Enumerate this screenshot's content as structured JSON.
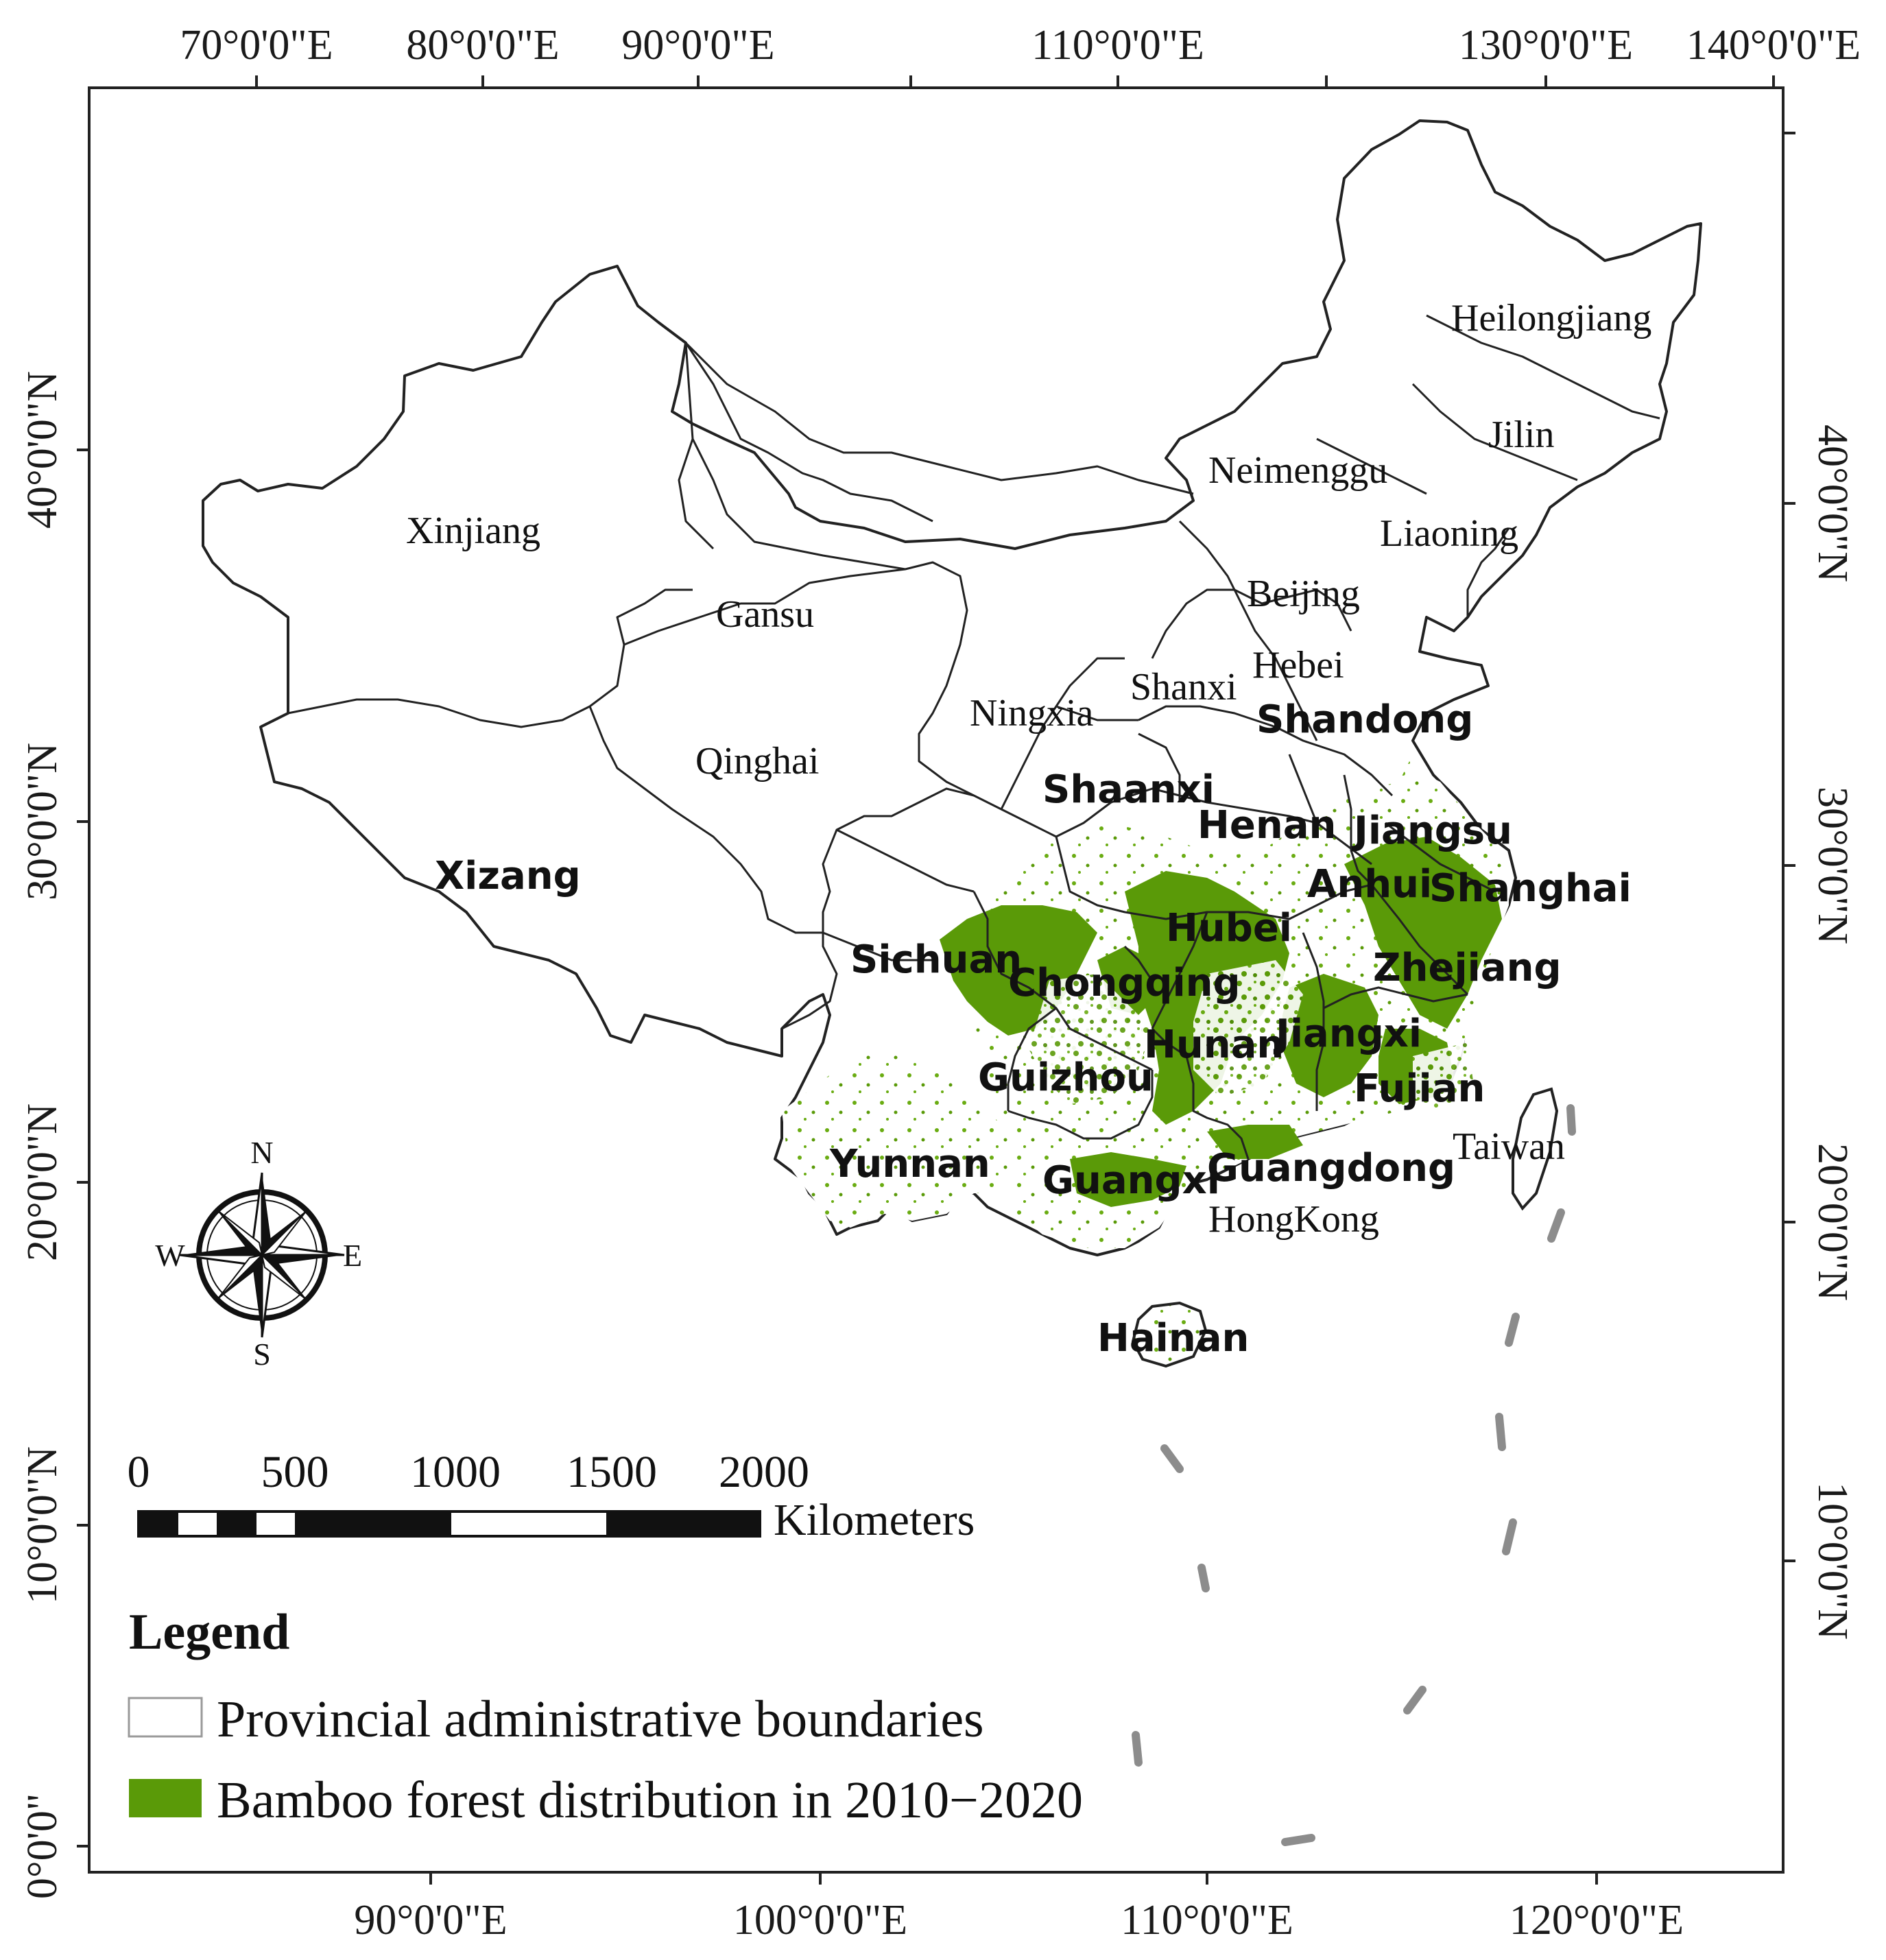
{
  "map": {
    "top_longitude_labels": [
      "70°0'0\"E",
      "80°0'0\"E",
      "90°0'0\"E",
      "110°0'0\"E",
      "130°0'0\"E",
      "140°0'0\"E"
    ],
    "bottom_longitude_labels": [
      "90°0'0\"E",
      "100°0'0\"E",
      "110°0'0\"E",
      "120°0'0\"E"
    ],
    "left_latitude_labels": [
      "40°0'0\"N",
      "30°0'0\"N",
      "20°0'0\"N",
      "10°0'0\"N",
      "0°0'0\""
    ],
    "right_latitude_labels": [
      "40°0'0\"N",
      "30°0'0\"N",
      "20°0'0\"N",
      "10°0'0\"N"
    ],
    "provinces": {
      "heilongjiang": "Heilongjiang",
      "jilin": "Jilin",
      "neimenggu": "Neimenggu",
      "liaoning": "Liaoning",
      "xinjiang": "Xinjiang",
      "beijing": "Beijing",
      "gansu": "Gansu",
      "hebei": "Hebei",
      "shanxi": "Shanxi",
      "ningxia": "Ningxia",
      "shandong": "Shandong",
      "qinghai": "Qinghai",
      "shaanxi": "Shaanxi",
      "henan": "Henan",
      "jiangsu": "Jiangsu",
      "xizang": "Xizang",
      "anhui": "Anhui",
      "shanghai": "Shanghai",
      "hubei": "Hubei",
      "sichuan": "Sichuan",
      "chongqing": "Chongqing",
      "zhejiang": "Zhejiang",
      "hunan": "Hunan",
      "jiangxi": "Jiangxi",
      "guizhou": "Guizhou",
      "fujian": "Fujian",
      "taiwan": "Taiwan",
      "yunnan": "Yunnan",
      "guangxi": "Guangxi",
      "guangdong": "Guangdong",
      "hongkong": "HongKong",
      "hainan": "Hainan"
    },
    "compass": {
      "n": "N",
      "s": "S",
      "e": "E",
      "w": "W"
    },
    "scale_bar": {
      "ticks": [
        "0",
        "500",
        "1000",
        "1500",
        "2000"
      ],
      "unit": "Kilometers"
    },
    "legend": {
      "title": "Legend",
      "items": [
        {
          "label": "Provincial administrative boundaries",
          "color": "#ffffff"
        },
        {
          "label": "Bamboo forest distribution in 2010−2020",
          "color": "#5a9a08"
        }
      ]
    },
    "colors": {
      "bamboo": "#5a9a08",
      "boundary": "#222222",
      "dashed_line": "#8c8c8c"
    }
  }
}
